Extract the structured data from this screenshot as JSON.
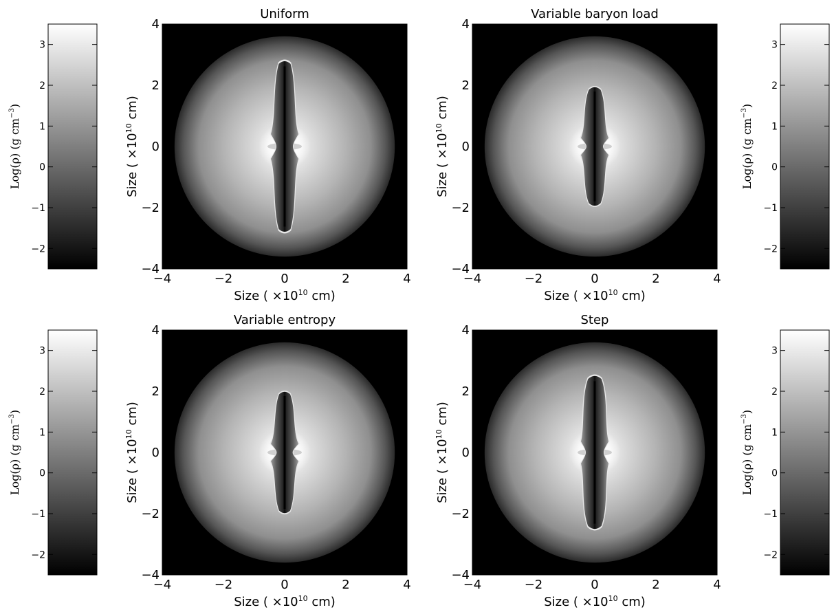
{
  "chart_data": [
    {
      "type": "heatmap",
      "title": "Uniform",
      "xlabel": "Size ( ×10",
      "ylabel": "Size ( ×10",
      "label_exponent": "10",
      "label_unit": " cm)",
      "xlim": [
        -4,
        4
      ],
      "ylim": [
        -4,
        4
      ],
      "xticks": [
        "−4",
        "−2",
        "0",
        "2",
        "4"
      ],
      "yticks": [
        "4",
        "2",
        "0",
        "−2",
        "−4"
      ],
      "cloud_radius": 3.6,
      "jet": {
        "half_length": 2.7,
        "half_width": 0.35,
        "lobe_half_width": 0.45
      },
      "grid": false
    },
    {
      "type": "heatmap",
      "title": "Variable baryon load",
      "xlabel": "Size ( ×10",
      "ylabel": "Size ( ×10",
      "label_exponent": "10",
      "label_unit": " cm)",
      "xlim": [
        -4,
        4
      ],
      "ylim": [
        -4,
        4
      ],
      "xticks": [
        "−4",
        "−2",
        "0",
        "2",
        "4"
      ],
      "yticks": [
        "4",
        "2",
        "0",
        "−2",
        "−4"
      ],
      "cloud_radius": 3.6,
      "jet": {
        "half_length": 1.85,
        "half_width": 0.35,
        "lobe_half_width": 0.45
      },
      "grid": false
    },
    {
      "type": "heatmap",
      "title": "Variable entropy",
      "xlabel": "Size ( ×10",
      "ylabel": "Size ( ×10",
      "label_exponent": "10",
      "label_unit": " cm)",
      "xlim": [
        -4,
        4
      ],
      "ylim": [
        -4,
        4
      ],
      "xticks": [
        "−4",
        "−2",
        "0",
        "2",
        "4"
      ],
      "yticks": [
        "4",
        "2",
        "0",
        "−2",
        "−4"
      ],
      "cloud_radius": 3.6,
      "jet": {
        "half_length": 1.9,
        "half_width": 0.33,
        "lobe_half_width": 0.45
      },
      "grid": false
    },
    {
      "type": "heatmap",
      "title": "Step",
      "xlabel": "Size ( ×10",
      "ylabel": "Size ( ×10",
      "label_exponent": "10",
      "label_unit": " cm)",
      "xlim": [
        -4,
        4
      ],
      "ylim": [
        -4,
        4
      ],
      "xticks": [
        "−4",
        "−2",
        "0",
        "2",
        "4"
      ],
      "yticks": [
        "4",
        "2",
        "0",
        "−2",
        "−4"
      ],
      "cloud_radius": 3.6,
      "jet": {
        "half_length": 2.4,
        "half_width": 0.4,
        "lobe_half_width": 0.45
      },
      "grid": false
    }
  ],
  "colorbar": {
    "label": "Log(ρ) (g cm",
    "label_exponent": "−3",
    "label_close": ")",
    "range": [
      -2.5,
      3.5
    ],
    "ticks": [
      {
        "value": 3,
        "label": "3"
      },
      {
        "value": 2,
        "label": "2"
      },
      {
        "value": 1,
        "label": "1"
      },
      {
        "value": 0,
        "label": "0"
      },
      {
        "value": -1,
        "label": "−1"
      },
      {
        "value": -2,
        "label": "−2"
      }
    ],
    "colormap": "gray"
  }
}
